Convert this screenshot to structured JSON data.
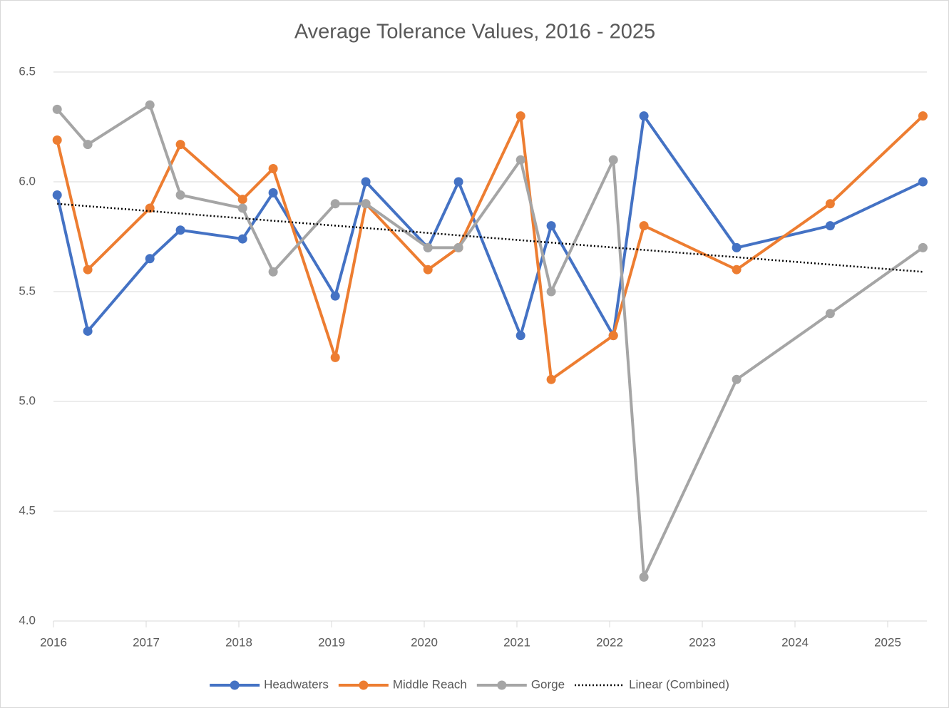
{
  "chart_data": {
    "type": "line",
    "title": "Average Tolerance Values, 2016 - 2025",
    "x": [
      2016.04,
      2016.37,
      2017.04,
      2017.37,
      2018.04,
      2018.37,
      2019.04,
      2019.37,
      2020.04,
      2020.37,
      2021.04,
      2021.37,
      2022.04,
      2022.37,
      2023.37,
      2024.38,
      2025.38
    ],
    "series": [
      {
        "name": "Headwaters",
        "color": "#4472c4",
        "values": [
          5.94,
          5.32,
          5.65,
          5.78,
          5.74,
          5.95,
          5.48,
          6.0,
          5.7,
          6.0,
          5.3,
          5.8,
          5.3,
          6.3,
          5.7,
          5.8,
          6.0
        ]
      },
      {
        "name": "Middle Reach",
        "color": "#ed7d31",
        "values": [
          6.19,
          5.6,
          5.88,
          6.17,
          5.92,
          6.06,
          5.2,
          5.9,
          5.6,
          5.7,
          6.3,
          5.1,
          5.3,
          5.8,
          5.6,
          5.9,
          6.3
        ]
      },
      {
        "name": "Gorge",
        "color": "#a5a5a5",
        "values": [
          6.33,
          6.17,
          6.35,
          5.94,
          5.88,
          5.59,
          5.9,
          5.9,
          5.7,
          5.7,
          6.1,
          5.5,
          6.1,
          4.2,
          5.1,
          5.4,
          5.7
        ]
      }
    ],
    "trendline": {
      "name": "Linear (Combined)",
      "color": "#000000",
      "x": [
        2016.04,
        2025.38
      ],
      "values": [
        5.9,
        5.59
      ]
    },
    "xlim": [
      2016,
      2025.4231
    ],
    "xticks": [
      2016,
      2017,
      2018,
      2019,
      2020,
      2021,
      2022,
      2023,
      2024,
      2025
    ],
    "ylim": [
      4.0,
      6.5
    ],
    "yticks": [
      {
        "value": 4.0,
        "label": "4.0"
      },
      4.5,
      {
        "value": 5.0,
        "label": "5.0"
      },
      5.5,
      {
        "value": 6.0,
        "label": "6.0"
      },
      6.5
    ],
    "grid": true,
    "legend": "bottom"
  }
}
